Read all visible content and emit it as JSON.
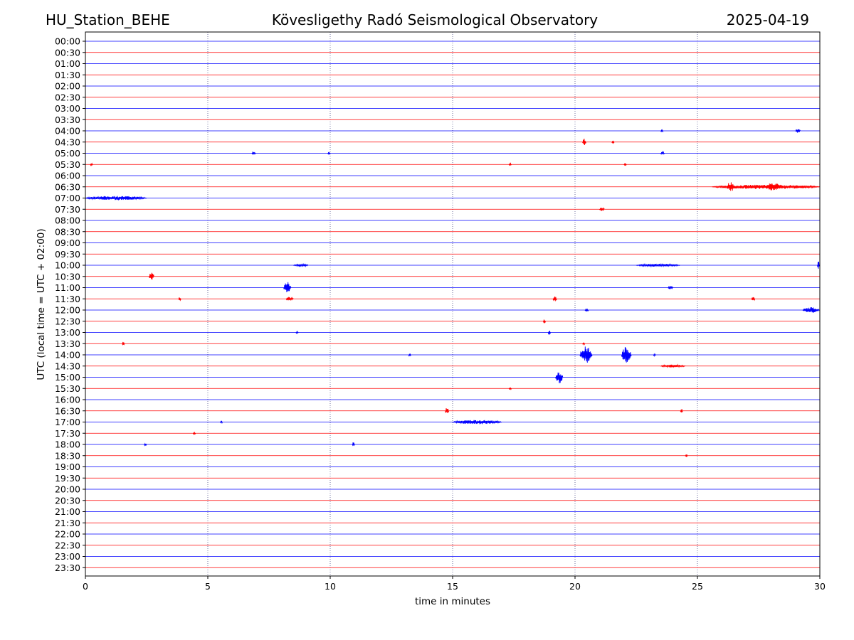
{
  "header": {
    "station": "HU_Station_BEHE",
    "observatory": "Kövesligethy Radó Seismological Observatory",
    "date": "2025-04-19"
  },
  "chart_data": {
    "type": "line",
    "title": "Kövesligethy Radó Seismological Observatory",
    "xlabel": "time in minutes",
    "ylabel": "UTC (local time = UTC + 02:00)",
    "xlim": [
      0,
      30
    ],
    "x_ticks": [
      "0",
      "5",
      "10",
      "15",
      "20",
      "25",
      "30"
    ],
    "grid": "vertical dotted at 5, 10, 15, 20, 25",
    "row_labels": [
      "00:00",
      "00:30",
      "01:00",
      "01:30",
      "02:00",
      "02:30",
      "03:00",
      "03:30",
      "04:00",
      "04:30",
      "05:00",
      "05:30",
      "06:00",
      "06:30",
      "07:00",
      "07:30",
      "08:00",
      "08:30",
      "09:00",
      "09:30",
      "10:00",
      "10:30",
      "11:00",
      "11:30",
      "12:00",
      "12:30",
      "13:00",
      "13:30",
      "14:00",
      "14:30",
      "15:00",
      "15:30",
      "16:00",
      "16:30",
      "17:00",
      "17:30",
      "18:00",
      "18:30",
      "19:00",
      "19:30",
      "20:00",
      "20:30",
      "21:00",
      "21:30",
      "22:00",
      "22:30",
      "23:00",
      "23:30"
    ],
    "trace_colors": [
      "#0000ff",
      "#ff0000"
    ],
    "events": [
      {
        "row": 8,
        "minute": 29.0,
        "amp": 3,
        "dur": 0.2
      },
      {
        "row": 8,
        "minute": 23.5,
        "amp": 2,
        "dur": 0.1
      },
      {
        "row": 9,
        "minute": 20.3,
        "amp": 5,
        "dur": 0.15
      },
      {
        "row": 9,
        "minute": 21.5,
        "amp": 2,
        "dur": 0.1
      },
      {
        "row": 10,
        "minute": 6.8,
        "amp": 3,
        "dur": 0.15
      },
      {
        "row": 10,
        "minute": 9.9,
        "amp": 2,
        "dur": 0.1
      },
      {
        "row": 10,
        "minute": 23.5,
        "amp": 3,
        "dur": 0.15
      },
      {
        "row": 11,
        "minute": 0.2,
        "amp": 2,
        "dur": 0.1
      },
      {
        "row": 11,
        "minute": 17.3,
        "amp": 2,
        "dur": 0.1
      },
      {
        "row": 11,
        "minute": 22.0,
        "amp": 2,
        "dur": 0.1
      },
      {
        "row": 13,
        "minute": 25.6,
        "amp": 3,
        "dur": 4.4
      },
      {
        "row": 13,
        "minute": 26.2,
        "amp": 7,
        "dur": 0.3
      },
      {
        "row": 13,
        "minute": 27.8,
        "amp": 6,
        "dur": 0.6
      },
      {
        "row": 14,
        "minute": 0.0,
        "amp": 3,
        "dur": 2.5
      },
      {
        "row": 15,
        "minute": 21.0,
        "amp": 3,
        "dur": 0.2
      },
      {
        "row": 20,
        "minute": 8.5,
        "amp": 2,
        "dur": 0.6
      },
      {
        "row": 20,
        "minute": 22.5,
        "amp": 2,
        "dur": 1.8
      },
      {
        "row": 20,
        "minute": 29.9,
        "amp": 6,
        "dur": 0.1
      },
      {
        "row": 21,
        "minute": 2.6,
        "amp": 6,
        "dur": 0.2
      },
      {
        "row": 22,
        "minute": 8.1,
        "amp": 8,
        "dur": 0.3
      },
      {
        "row": 22,
        "minute": 23.8,
        "amp": 3,
        "dur": 0.2
      },
      {
        "row": 23,
        "minute": 3.8,
        "amp": 3,
        "dur": 0.1
      },
      {
        "row": 23,
        "minute": 8.2,
        "amp": 3,
        "dur": 0.3
      },
      {
        "row": 23,
        "minute": 19.1,
        "amp": 4,
        "dur": 0.15
      },
      {
        "row": 23,
        "minute": 27.2,
        "amp": 3,
        "dur": 0.15
      },
      {
        "row": 24,
        "minute": 20.4,
        "amp": 2,
        "dur": 0.15
      },
      {
        "row": 24,
        "minute": 29.3,
        "amp": 4,
        "dur": 0.7
      },
      {
        "row": 25,
        "minute": 18.7,
        "amp": 3,
        "dur": 0.1
      },
      {
        "row": 26,
        "minute": 8.6,
        "amp": 2,
        "dur": 0.1
      },
      {
        "row": 26,
        "minute": 18.9,
        "amp": 3,
        "dur": 0.1
      },
      {
        "row": 27,
        "minute": 1.5,
        "amp": 3,
        "dur": 0.1
      },
      {
        "row": 27,
        "minute": 20.3,
        "amp": 2,
        "dur": 0.1
      },
      {
        "row": 28,
        "minute": 13.2,
        "amp": 2,
        "dur": 0.1
      },
      {
        "row": 28,
        "minute": 20.2,
        "amp": 12,
        "dur": 0.5
      },
      {
        "row": 28,
        "minute": 21.9,
        "amp": 12,
        "dur": 0.4
      },
      {
        "row": 28,
        "minute": 23.2,
        "amp": 2,
        "dur": 0.1
      },
      {
        "row": 29,
        "minute": 23.5,
        "amp": 2,
        "dur": 1.0
      },
      {
        "row": 30,
        "minute": 19.2,
        "amp": 9,
        "dur": 0.3
      },
      {
        "row": 31,
        "minute": 17.3,
        "amp": 2,
        "dur": 0.1
      },
      {
        "row": 33,
        "minute": 14.7,
        "amp": 5,
        "dur": 0.15
      },
      {
        "row": 33,
        "minute": 24.3,
        "amp": 3,
        "dur": 0.1
      },
      {
        "row": 34,
        "minute": 5.5,
        "amp": 2,
        "dur": 0.1
      },
      {
        "row": 34,
        "minute": 15.0,
        "amp": 3,
        "dur": 2.0
      },
      {
        "row": 35,
        "minute": 4.4,
        "amp": 2,
        "dur": 0.1
      },
      {
        "row": 36,
        "minute": 2.4,
        "amp": 2,
        "dur": 0.1
      },
      {
        "row": 36,
        "minute": 10.9,
        "amp": 4,
        "dur": 0.1
      },
      {
        "row": 37,
        "minute": 24.5,
        "amp": 2,
        "dur": 0.1
      }
    ]
  }
}
